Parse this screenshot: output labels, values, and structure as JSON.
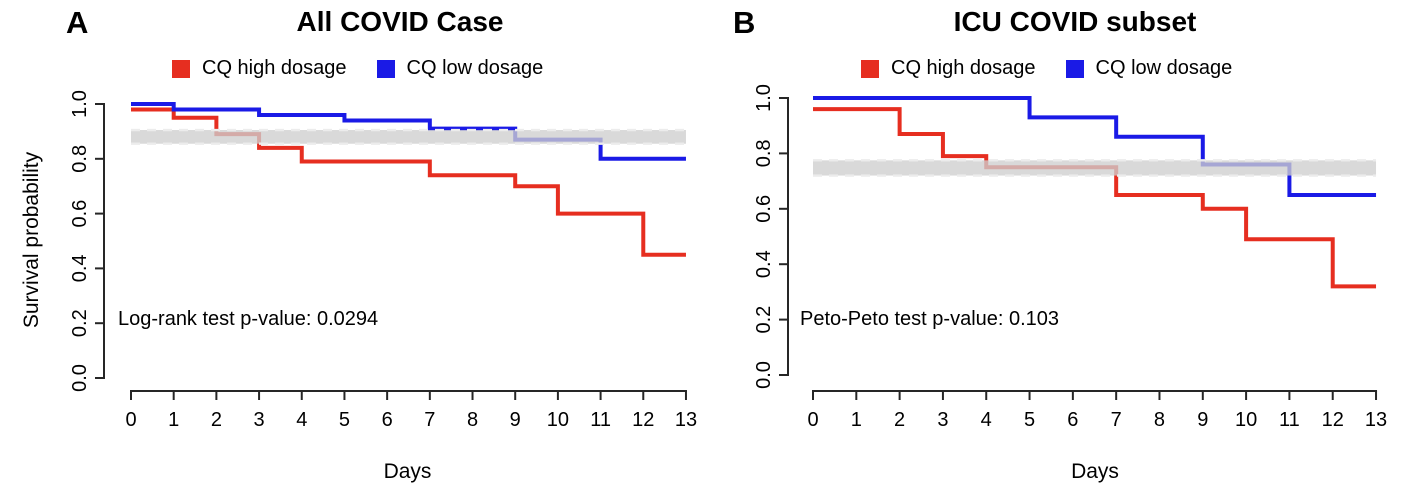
{
  "figure": {
    "background": "#ffffff"
  },
  "chart_data": [
    {
      "type": "line",
      "subtype": "kaplan-meier-step",
      "panel_label": "A",
      "title": "All COVID Case",
      "xlabel": "Days",
      "ylabel": "Survival probability",
      "annotation": "Log-rank test p-value: 0.0294",
      "xlim": [
        0,
        13
      ],
      "ylim": [
        0.0,
        1.0
      ],
      "xticks": [
        "0",
        "1",
        "2",
        "3",
        "4",
        "5",
        "6",
        "7",
        "8",
        "9",
        "10",
        "11",
        "12",
        "13"
      ],
      "yticks": [
        "0.0",
        "0.2",
        "0.4",
        "0.6",
        "0.8",
        "1.0"
      ],
      "grid": false,
      "legend_position": "top-center",
      "band": {
        "ymin": 0.855,
        "ymax": 0.905,
        "color": "#cecece",
        "edge_style": "dashed"
      },
      "series": [
        {
          "name": "CQ high dosage",
          "color": "#e62e20",
          "steps": [
            [
              0,
              0.98
            ],
            [
              1,
              0.95
            ],
            [
              2,
              0.89
            ],
            [
              3,
              0.84
            ],
            [
              4,
              0.79
            ],
            [
              7,
              0.74
            ],
            [
              9,
              0.7
            ],
            [
              10,
              0.6
            ],
            [
              12,
              0.45
            ],
            [
              13,
              0.45
            ]
          ]
        },
        {
          "name": "CQ low dosage",
          "color": "#1a1ae6",
          "steps": [
            [
              0,
              1.0
            ],
            [
              1,
              0.98
            ],
            [
              3,
              0.96
            ],
            [
              5,
              0.94
            ],
            [
              7,
              0.91
            ],
            [
              9,
              0.87
            ],
            [
              11,
              0.8
            ],
            [
              13,
              0.8
            ]
          ]
        }
      ]
    },
    {
      "type": "line",
      "subtype": "kaplan-meier-step",
      "panel_label": "B",
      "title": "ICU COVID subset",
      "xlabel": "Days",
      "ylabel": "",
      "annotation": "Peto-Peto test p-value: 0.103",
      "xlim": [
        0,
        13
      ],
      "ylim": [
        0.0,
        1.0
      ],
      "xticks": [
        "0",
        "1",
        "2",
        "3",
        "4",
        "5",
        "6",
        "7",
        "8",
        "9",
        "10",
        "11",
        "12",
        "13"
      ],
      "yticks": [
        "0.0",
        "0.2",
        "0.4",
        "0.6",
        "0.8",
        "1.0"
      ],
      "grid": false,
      "legend_position": "top-center",
      "band": {
        "ymin": 0.72,
        "ymax": 0.775,
        "color": "#cecece",
        "edge_style": "dashed"
      },
      "series": [
        {
          "name": "CQ high dosage",
          "color": "#e62e20",
          "steps": [
            [
              0,
              0.96
            ],
            [
              2,
              0.87
            ],
            [
              3,
              0.79
            ],
            [
              4,
              0.75
            ],
            [
              7,
              0.65
            ],
            [
              9,
              0.6
            ],
            [
              10,
              0.49
            ],
            [
              12,
              0.32
            ],
            [
              13,
              0.32
            ]
          ]
        },
        {
          "name": "CQ low dosage",
          "color": "#1a1ae6",
          "steps": [
            [
              0,
              1.0
            ],
            [
              5,
              0.93
            ],
            [
              7,
              0.86
            ],
            [
              9,
              0.76
            ],
            [
              11,
              0.65
            ],
            [
              13,
              0.65
            ]
          ]
        }
      ]
    }
  ]
}
